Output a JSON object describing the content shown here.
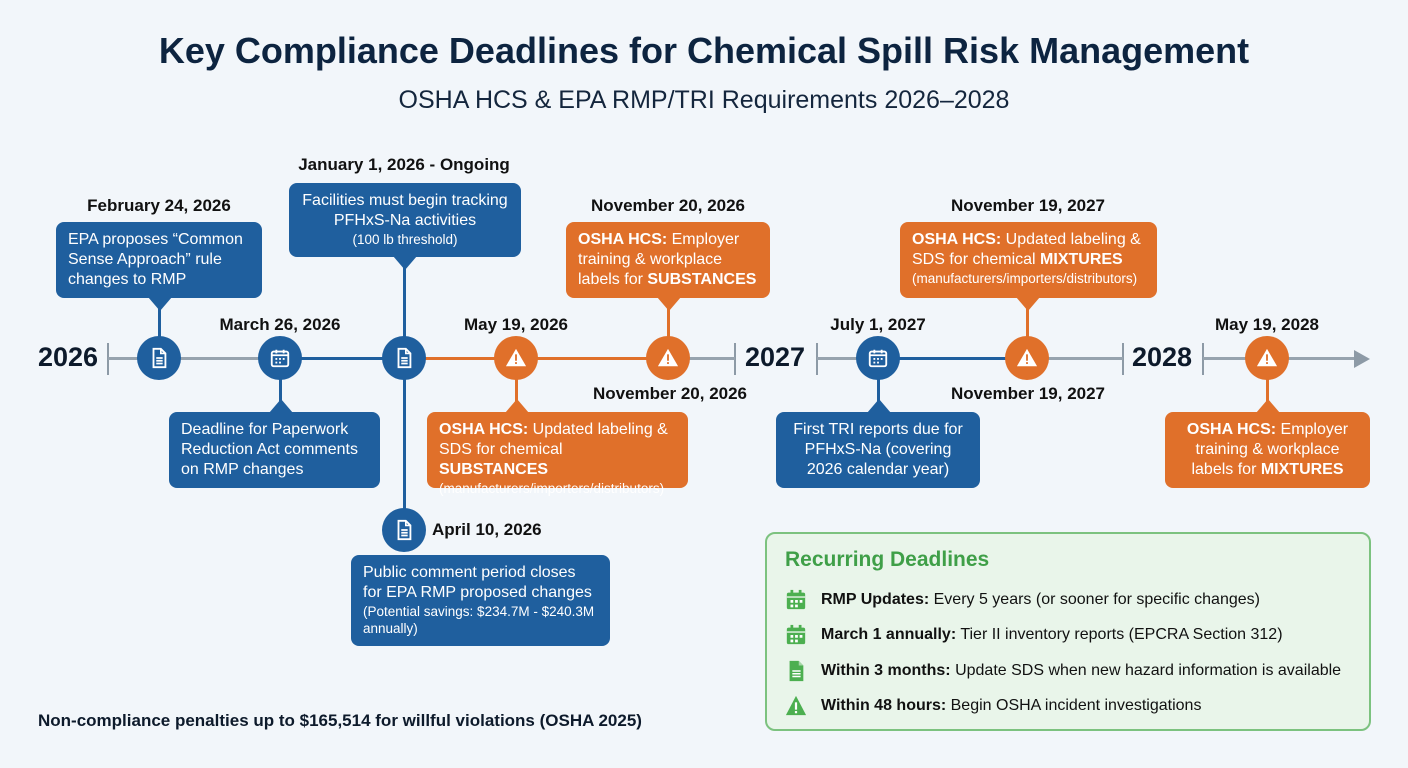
{
  "title": "Key Compliance Deadlines for Chemical Spill Risk Management",
  "subtitle": "OSHA HCS & EPA RMP/TRI Requirements 2026–2028",
  "colors": {
    "epa_blue": "#1f5f9e",
    "osha_orange": "#e0702a",
    "recurring_green": "#3f9f48",
    "axis_gray": "#97a3ae"
  },
  "years": [
    "2026",
    "2027",
    "2028"
  ],
  "events": {
    "feb24": {
      "date": "February 24, 2026",
      "icon": "document-icon",
      "text": "EPA proposes “Common Sense Approach” rule changes to RMP"
    },
    "mar26": {
      "date": "March 26, 2026",
      "icon": "calendar-icon",
      "text": "Deadline for Paperwork Reduction Act comments on RMP changes"
    },
    "jan1": {
      "date": "January 1, 2026 - Ongoing",
      "icon": "document-icon",
      "text": "Facilities must begin tracking PFHxS-Na activities",
      "note": "(100 lb threshold)"
    },
    "apr10": {
      "date": "April 10, 2026",
      "icon": "document-icon",
      "text": "Public comment period closes for EPA RMP proposed changes",
      "note": "(Potential savings: $234.7M - $240.3M annually)"
    },
    "may19_2026": {
      "date": "May 19, 2026",
      "icon": "warning-icon",
      "bold": "OSHA HCS:",
      "text": " Updated labeling & SDS for chemical ",
      "bold2": "SUBSTANCES",
      "note": "(manufacturers/importers/distributors)"
    },
    "nov20_top": {
      "date": "November 20, 2026",
      "icon": "warning-icon",
      "bold": "OSHA HCS:",
      "text": " Employer training & workplace labels for ",
      "bold2": "SUBSTANCES"
    },
    "nov20_bottom": {
      "date": "November 20, 2026"
    },
    "jul1_2027": {
      "date": "July 1, 2027",
      "icon": "calendar-icon",
      "text": "First TRI reports due for PFHxS-Na (covering 2026 calendar year)"
    },
    "nov19_top": {
      "date": "November 19, 2027",
      "icon": "warning-icon",
      "bold": "OSHA HCS:",
      "text": " Updated labeling & SDS for chemical ",
      "bold2": "MIXTURES",
      "note": "(manufacturers/importers/distributors)"
    },
    "nov19_bottom": {
      "date": "November 19, 2027"
    },
    "may19_2028": {
      "date": "May 19, 2028",
      "icon": "warning-icon",
      "bold": "OSHA HCS:",
      "text": " Employer training & workplace labels for ",
      "bold2": "MIXTURES"
    }
  },
  "recurring": {
    "title": "Recurring Deadlines",
    "items": [
      {
        "icon": "calendar-icon",
        "bold": "RMP Updates:",
        "text": " Every 5 years (or sooner for specific changes)"
      },
      {
        "icon": "calendar-icon",
        "bold": "March 1 annually:",
        "text": " Tier II inventory reports (EPCRA Section 312)"
      },
      {
        "icon": "document-icon",
        "bold": "Within 3 months:",
        "text": " Update SDS when new hazard information is available"
      },
      {
        "icon": "warning-icon",
        "bold": "Within 48 hours:",
        "text": " Begin OSHA incident investigations"
      }
    ]
  },
  "footer": "Non-compliance penalties up to $165,514 for willful violations (OSHA 2025)"
}
